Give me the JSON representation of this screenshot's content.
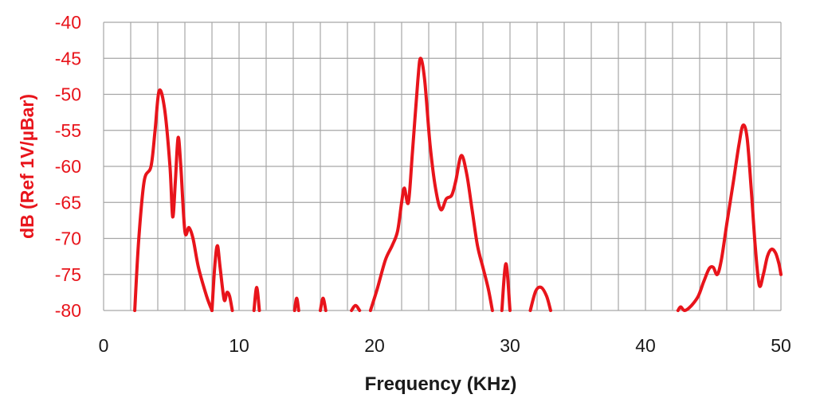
{
  "chart_data": {
    "type": "line",
    "xlabel": "Frequency (KHz)",
    "ylabel": "dB (Ref 1V/µBar)",
    "xlim": [
      0,
      50
    ],
    "ylim": [
      -80,
      -40
    ],
    "xticks": [
      0,
      10,
      20,
      30,
      40,
      50
    ],
    "yticks": [
      -40,
      -45,
      -50,
      -55,
      -60,
      -65,
      -70,
      -75,
      -80
    ],
    "grid": true,
    "minor_x_gridlines_every": 2,
    "line_color": "#e8141b",
    "series": [
      {
        "segments": [
          [
            [
              2.3,
              -80
            ],
            [
              2.6,
              -70
            ],
            [
              3.0,
              -62
            ],
            [
              3.5,
              -60
            ],
            [
              3.8,
              -55
            ],
            [
              4.1,
              -49.5
            ],
            [
              4.5,
              -52
            ],
            [
              4.9,
              -60
            ],
            [
              5.1,
              -67
            ],
            [
              5.3,
              -62
            ],
            [
              5.5,
              -56
            ],
            [
              5.7,
              -60
            ],
            [
              6.0,
              -69
            ],
            [
              6.3,
              -68.5
            ],
            [
              6.6,
              -70
            ],
            [
              7.0,
              -74
            ],
            [
              7.6,
              -78
            ],
            [
              8.0,
              -80
            ]
          ],
          [
            [
              8.0,
              -80
            ],
            [
              8.2,
              -74
            ],
            [
              8.4,
              -71
            ],
            [
              8.6,
              -74
            ],
            [
              8.9,
              -78.5
            ],
            [
              9.1,
              -77.5
            ],
            [
              9.3,
              -78
            ],
            [
              9.5,
              -80
            ]
          ],
          [
            [
              11.1,
              -80
            ],
            [
              11.3,
              -76.8
            ],
            [
              11.5,
              -80
            ]
          ],
          [
            [
              14.1,
              -80
            ],
            [
              14.25,
              -78.3
            ],
            [
              14.4,
              -80
            ]
          ],
          [
            [
              16.0,
              -80
            ],
            [
              16.2,
              -78.3
            ],
            [
              16.4,
              -80
            ]
          ],
          [
            [
              18.3,
              -80
            ],
            [
              18.6,
              -79.3
            ],
            [
              18.9,
              -80
            ]
          ],
          [
            [
              19.7,
              -80
            ],
            [
              20.2,
              -77
            ],
            [
              20.8,
              -73
            ],
            [
              21.3,
              -71
            ],
            [
              21.7,
              -69
            ],
            [
              22.0,
              -65
            ],
            [
              22.2,
              -63
            ],
            [
              22.5,
              -65
            ],
            [
              22.8,
              -58
            ],
            [
              23.2,
              -48
            ],
            [
              23.4,
              -45
            ],
            [
              23.7,
              -48
            ],
            [
              24.1,
              -57
            ],
            [
              24.5,
              -63
            ],
            [
              24.9,
              -66
            ],
            [
              25.3,
              -64.5
            ],
            [
              25.7,
              -64
            ],
            [
              26.0,
              -62
            ],
            [
              26.4,
              -58.5
            ],
            [
              26.8,
              -61
            ],
            [
              27.2,
              -66
            ],
            [
              27.6,
              -71
            ],
            [
              28.0,
              -74
            ],
            [
              28.4,
              -77
            ],
            [
              28.7,
              -80
            ]
          ],
          [
            [
              29.4,
              -80
            ],
            [
              29.7,
              -73.5
            ],
            [
              30.0,
              -80
            ]
          ],
          [
            [
              31.5,
              -80
            ],
            [
              31.9,
              -77.3
            ],
            [
              32.3,
              -76.8
            ],
            [
              32.7,
              -78
            ],
            [
              33.0,
              -80
            ]
          ],
          [
            [
              42.4,
              -80
            ],
            [
              42.6,
              -79.5
            ],
            [
              42.9,
              -80
            ],
            [
              43.4,
              -79.3
            ],
            [
              43.9,
              -78
            ],
            [
              44.3,
              -76
            ],
            [
              44.7,
              -74.2
            ],
            [
              45.0,
              -74
            ],
            [
              45.3,
              -75
            ],
            [
              45.6,
              -73
            ],
            [
              46.0,
              -68
            ],
            [
              46.5,
              -62
            ],
            [
              46.9,
              -57
            ],
            [
              47.2,
              -54.3
            ],
            [
              47.5,
              -56
            ],
            [
              47.8,
              -63
            ],
            [
              48.1,
              -71
            ],
            [
              48.4,
              -76.5
            ],
            [
              48.7,
              -75
            ],
            [
              49.0,
              -72.5
            ],
            [
              49.3,
              -71.5
            ],
            [
              49.6,
              -72
            ],
            [
              49.85,
              -73.5
            ],
            [
              50.0,
              -75
            ]
          ]
        ]
      }
    ]
  }
}
